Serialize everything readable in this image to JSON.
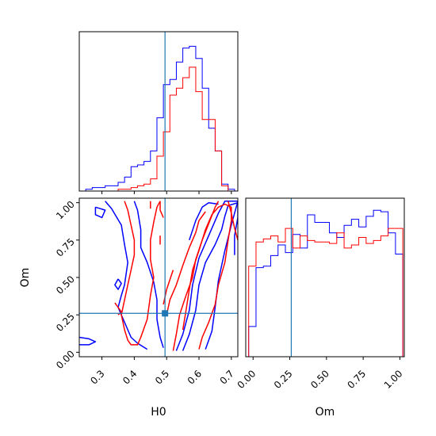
{
  "chart_data": {
    "type": "corner",
    "parameters": [
      "H0",
      "Om"
    ],
    "truth": {
      "H0": 0.495,
      "Om": 0.26
    },
    "colors": {
      "blue": "#0000ff",
      "red": "#ff0000",
      "truth": "#1f77b4"
    },
    "panels": {
      "h0_hist": {
        "type": "histogram-step",
        "xlim": [
          0.23,
          0.72
        ],
        "bin_edges": [
          0.23,
          0.25,
          0.27,
          0.29,
          0.31,
          0.33,
          0.35,
          0.37,
          0.39,
          0.41,
          0.43,
          0.45,
          0.47,
          0.49,
          0.51,
          0.53,
          0.55,
          0.57,
          0.59,
          0.61,
          0.63,
          0.65,
          0.67,
          0.69,
          0.71,
          0.72
        ],
        "series": [
          {
            "color": "blue",
            "values": [
              0,
              1,
              2,
              2,
              3,
              3,
              5,
              8,
              14,
              15,
              17,
              23,
              42,
              61,
              64,
              74,
              82,
              83,
              76,
              59,
              36,
              23,
              4,
              1,
              0
            ]
          },
          {
            "color": "red",
            "values": [
              0,
              0,
              0,
              0,
              0,
              0,
              1,
              1,
              2,
              3,
              4,
              7,
              20,
              34,
              55,
              59,
              65,
              71,
              57,
              41,
              41,
              23,
              3,
              0,
              0
            ]
          }
        ]
      },
      "om_hist": {
        "type": "histogram-step",
        "xlim": [
          -0.05,
          1.03
        ],
        "xticks": [
          "0.00",
          "0.25",
          "0.50",
          "0.75",
          "1.00"
        ],
        "bin_edges": [
          -0.03,
          0.02,
          0.07,
          0.12,
          0.17,
          0.22,
          0.27,
          0.32,
          0.37,
          0.42,
          0.47,
          0.52,
          0.57,
          0.62,
          0.67,
          0.72,
          0.77,
          0.82,
          0.87,
          0.92,
          0.97,
          1.02
        ],
        "series": [
          {
            "color": "blue",
            "values": [
              0.2,
              0.59,
              0.6,
              0.67,
              0.74,
              0.69,
              0.81,
              0.72,
              0.94,
              0.89,
              0.89,
              0.82,
              0.79,
              0.87,
              0.91,
              0.86,
              0.93,
              0.97,
              0.96,
              0.82,
              0.68
            ]
          },
          {
            "color": "red",
            "values": [
              0.6,
              0.76,
              0.78,
              0.8,
              0.76,
              0.85,
              0.72,
              0.8,
              0.77,
              0.76,
              0.76,
              0.75,
              0.82,
              0.72,
              0.74,
              0.79,
              0.75,
              0.77,
              0.8,
              0.85,
              0.85
            ]
          }
        ]
      },
      "joint": {
        "type": "contour",
        "xlim": [
          0.23,
          0.72
        ],
        "ylim": [
          -0.03,
          1.03
        ],
        "xticks": [
          "0.3",
          "0.4",
          "0.5",
          "0.6",
          "0.7"
        ],
        "yticks": [
          "0.00",
          "0.25",
          "0.50",
          "0.75",
          "1.00"
        ],
        "xlabel": "H0",
        "ylabel": "Om",
        "contours": [
          {
            "color": "blue",
            "points": [
              [
                0.31,
                1.01
              ],
              [
                0.33,
                0.96
              ],
              [
                0.36,
                0.85
              ],
              [
                0.37,
                0.72
              ],
              [
                0.38,
                0.6
              ],
              [
                0.37,
                0.45
              ],
              [
                0.36,
                0.38
              ],
              [
                0.35,
                0.3
              ],
              [
                0.37,
                0.2
              ],
              [
                0.39,
                0.1
              ],
              [
                0.41,
                0.06
              ],
              [
                0.44,
                0.02
              ]
            ]
          },
          {
            "color": "blue",
            "points": [
              [
                0.4,
                1.01
              ],
              [
                0.41,
                0.95
              ],
              [
                0.42,
                0.82
              ],
              [
                0.42,
                0.7
              ],
              [
                0.44,
                0.6
              ],
              [
                0.46,
                0.47
              ],
              [
                0.47,
                0.35
              ],
              [
                0.47,
                0.22
              ],
              [
                0.48,
                0.1
              ],
              [
                0.49,
                0.03
              ]
            ]
          },
          {
            "color": "blue",
            "points": [
              [
                0.23,
                0.1
              ],
              [
                0.26,
                0.09
              ],
              [
                0.28,
                0.07
              ],
              [
                0.26,
                0.05
              ],
              [
                0.23,
                0.05
              ]
            ]
          },
          {
            "color": "blue",
            "points": [
              [
                0.28,
                0.97
              ],
              [
                0.31,
                0.95
              ],
              [
                0.3,
                0.9
              ],
              [
                0.28,
                0.92
              ],
              [
                0.28,
                0.97
              ]
            ]
          },
          {
            "color": "blue",
            "points": [
              [
                0.35,
                0.49
              ],
              [
                0.36,
                0.46
              ],
              [
                0.35,
                0.42
              ],
              [
                0.34,
                0.45
              ],
              [
                0.35,
                0.49
              ]
            ]
          },
          {
            "color": "blue",
            "points": [
              [
                0.53,
                0.01
              ],
              [
                0.55,
                0.12
              ],
              [
                0.57,
                0.28
              ],
              [
                0.58,
                0.45
              ],
              [
                0.6,
                0.63
              ],
              [
                0.63,
                0.78
              ],
              [
                0.66,
                0.93
              ],
              [
                0.68,
                1.01
              ],
              [
                0.72,
                1.01
              ],
              [
                0.7,
                0.85
              ],
              [
                0.68,
                0.68
              ],
              [
                0.66,
                0.48
              ],
              [
                0.65,
                0.3
              ],
              [
                0.64,
                0.14
              ],
              [
                0.62,
                0.02
              ]
            ]
          },
          {
            "color": "blue",
            "points": [
              [
                0.55,
                0.01
              ],
              [
                0.57,
                0.12
              ],
              [
                0.59,
                0.28
              ],
              [
                0.6,
                0.45
              ],
              [
                0.62,
                0.6
              ],
              [
                0.65,
                0.72
              ],
              [
                0.67,
                0.82
              ],
              [
                0.68,
                0.91
              ],
              [
                0.69,
                0.98
              ],
              [
                0.72,
                1.0
              ],
              [
                0.72,
                0.9
              ],
              [
                0.71,
                0.78
              ],
              [
                0.71,
                0.65
              ]
            ]
          },
          {
            "color": "blue",
            "points": [
              [
                0.57,
                0.75
              ],
              [
                0.59,
                0.88
              ],
              [
                0.61,
                0.97
              ],
              [
                0.63,
                1.0
              ],
              [
                0.66,
                0.99
              ]
            ]
          },
          {
            "color": "red",
            "points": [
              [
                0.37,
                1.01
              ],
              [
                0.38,
                0.95
              ],
              [
                0.39,
                0.85
              ],
              [
                0.4,
                0.75
              ],
              [
                0.4,
                0.65
              ],
              [
                0.39,
                0.55
              ],
              [
                0.38,
                0.45
              ],
              [
                0.37,
                0.35
              ],
              [
                0.36,
                0.25
              ],
              [
                0.37,
                0.15
              ],
              [
                0.38,
                0.08
              ],
              [
                0.39,
                0.05
              ],
              [
                0.41,
                0.05
              ],
              [
                0.42,
                0.1
              ],
              [
                0.44,
                0.22
              ],
              [
                0.45,
                0.38
              ],
              [
                0.46,
                0.5
              ],
              [
                0.45,
                0.62
              ],
              [
                0.45,
                0.75
              ],
              [
                0.46,
                0.87
              ],
              [
                0.47,
                0.97
              ],
              [
                0.48,
                1.01
              ]
            ]
          },
          {
            "color": "red",
            "points": [
              [
                0.48,
                1.01
              ],
              [
                0.48,
                0.95
              ],
              [
                0.49,
                0.9
              ]
            ]
          },
          {
            "color": "red",
            "points": [
              [
                0.45,
                1.01
              ],
              [
                0.45,
                0.96
              ]
            ]
          },
          {
            "color": "red",
            "points": [
              [
                0.52,
                0.01
              ],
              [
                0.53,
                0.12
              ],
              [
                0.54,
                0.25
              ],
              [
                0.56,
                0.38
              ],
              [
                0.58,
                0.5
              ],
              [
                0.59,
                0.62
              ],
              [
                0.61,
                0.75
              ],
              [
                0.63,
                0.86
              ],
              [
                0.65,
                0.97
              ],
              [
                0.66,
                1.01
              ]
            ]
          },
          {
            "color": "red",
            "points": [
              [
                0.55,
                0.15
              ],
              [
                0.56,
                0.28
              ],
              [
                0.57,
                0.42
              ],
              [
                0.58,
                0.55
              ],
              [
                0.6,
                0.68
              ],
              [
                0.62,
                0.82
              ],
              [
                0.64,
                0.92
              ],
              [
                0.66,
                0.97
              ],
              [
                0.68,
                0.99
              ],
              [
                0.7,
                0.97
              ],
              [
                0.7,
                0.88
              ],
              [
                0.69,
                0.75
              ],
              [
                0.68,
                0.6
              ],
              [
                0.66,
                0.45
              ],
              [
                0.65,
                0.32
              ],
              [
                0.63,
                0.2
              ],
              [
                0.61,
                0.1
              ],
              [
                0.6,
                0.02
              ]
            ]
          },
          {
            "color": "red",
            "points": [
              [
                0.5,
                0.25
              ],
              [
                0.51,
                0.35
              ],
              [
                0.53,
                0.45
              ],
              [
                0.55,
                0.58
              ],
              [
                0.57,
                0.7
              ],
              [
                0.59,
                0.8
              ],
              [
                0.6,
                0.88
              ],
              [
                0.62,
                0.94
              ]
            ]
          },
          {
            "color": "red",
            "points": [
              [
                0.49,
                0.32
              ],
              [
                0.5,
                0.42
              ],
              [
                0.52,
                0.55
              ]
            ]
          },
          {
            "color": "red",
            "points": [
              [
                0.69,
                1.01
              ],
              [
                0.7,
                0.93
              ],
              [
                0.71,
                0.83
              ],
              [
                0.72,
                0.75
              ]
            ]
          },
          {
            "color": "red",
            "points": [
              [
                0.48,
                0.78
              ],
              [
                0.48,
                0.72
              ]
            ]
          },
          {
            "color": "red",
            "points": [
              [
                0.34,
                0.33
              ],
              [
                0.35,
                0.3
              ],
              [
                0.36,
                0.27
              ],
              [
                0.35,
                0.25
              ]
            ]
          }
        ]
      }
    }
  }
}
